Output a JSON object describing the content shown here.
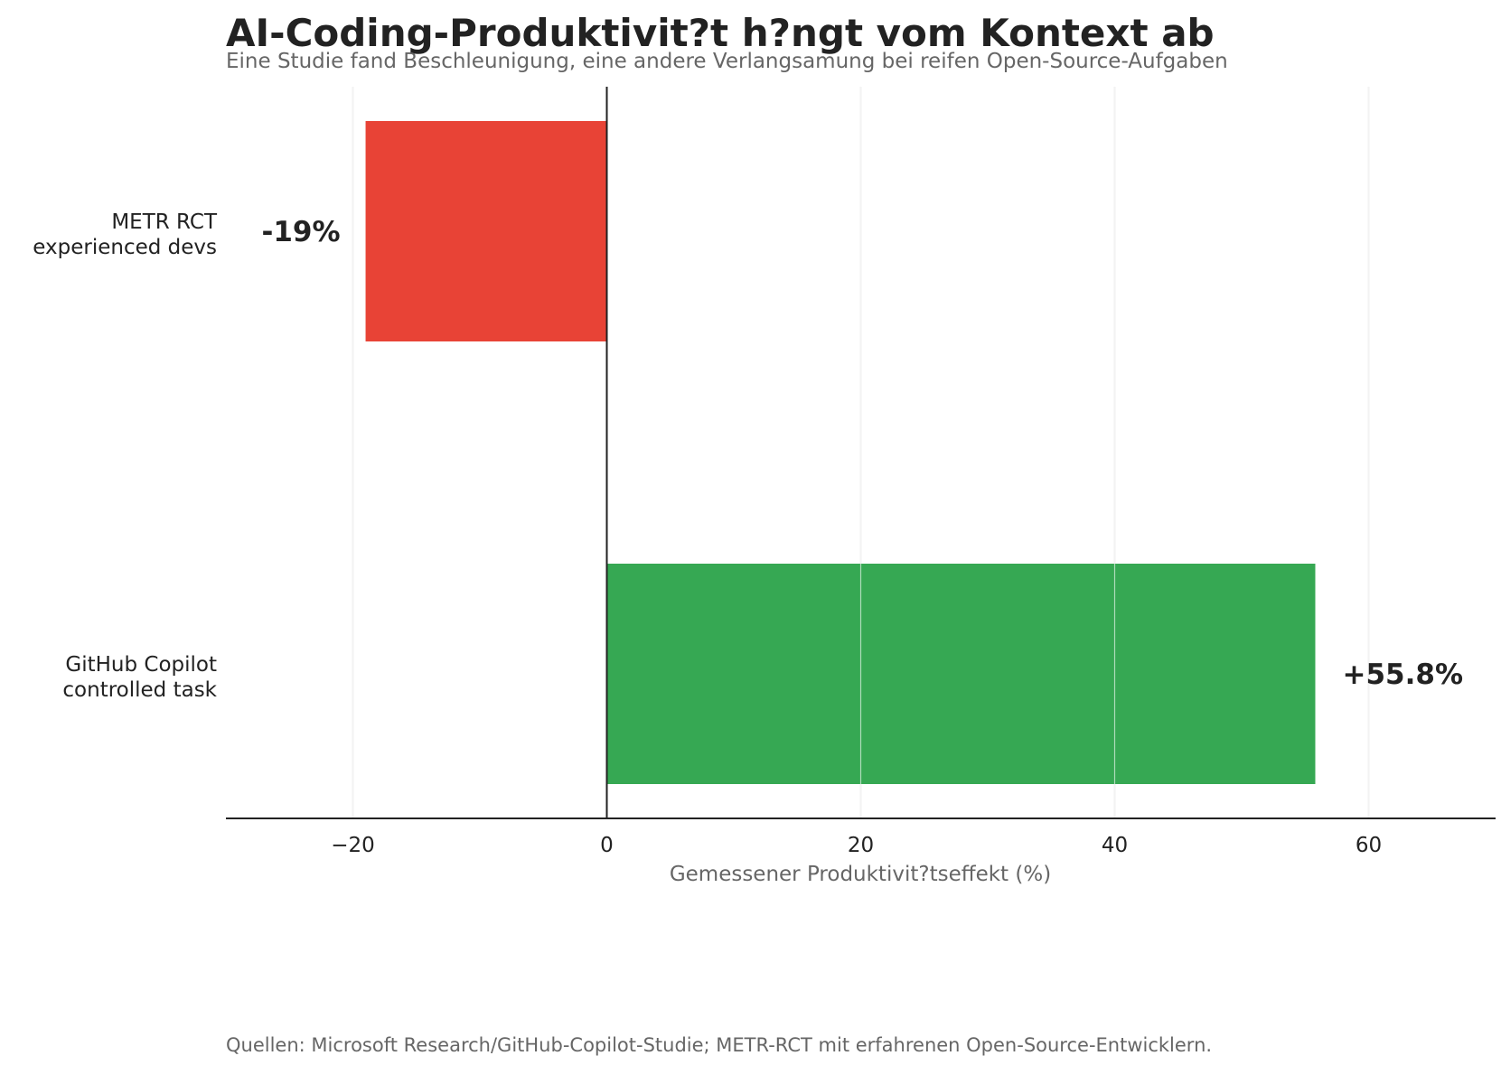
{
  "title": "AI-Coding-Produktivit?t h?ngt vom Kontext ab",
  "subtitle": "Eine Studie fand Beschleunigung, eine andere Verlangsamung bei reifen Open-Source-Aufgaben",
  "source_note": "Quellen: Microsoft Research/GitHub-Copilot-Studie; METR-RCT mit erfahrenen Open-Source-Entwicklern.",
  "chart_data": {
    "type": "bar",
    "orientation": "horizontal",
    "categories": [
      [
        "METR RCT",
        "experienced devs"
      ],
      [
        "GitHub Copilot",
        "controlled task"
      ]
    ],
    "values": [
      -19,
      55.8
    ],
    "data_labels": [
      "-19%",
      "+55.8%"
    ],
    "colors": [
      "#e84336",
      "#36a853"
    ],
    "xlabel": "Gemessener Produktivit?tseffekt (%)",
    "ylabel": "",
    "xlim": [
      -30,
      70
    ],
    "xticks": [
      -20,
      0,
      20,
      40,
      60
    ],
    "xtick_labels": [
      "−20",
      "0",
      "20",
      "40",
      "60"
    ],
    "grid": "vertical",
    "zero_line": true
  }
}
